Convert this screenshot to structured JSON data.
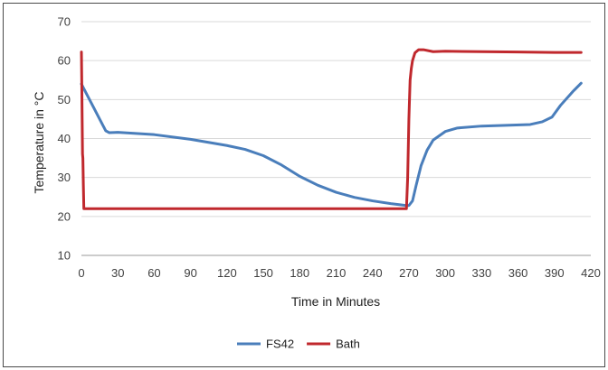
{
  "chart_data": {
    "type": "line",
    "title": "",
    "xlabel": "Time in Minutes",
    "ylabel": "Temperature in °C",
    "xlim": [
      0,
      420
    ],
    "ylim": [
      10,
      70
    ],
    "xticks": [
      0,
      30,
      60,
      90,
      120,
      150,
      180,
      210,
      240,
      270,
      300,
      330,
      360,
      390,
      420
    ],
    "yticks": [
      10,
      20,
      30,
      40,
      50,
      60,
      70
    ],
    "grid": "horizontal",
    "legend_position": "bottom",
    "series": [
      {
        "name": "FS42",
        "color": "#4a7ebb",
        "points": [
          [
            0,
            54
          ],
          [
            5,
            51
          ],
          [
            10,
            48
          ],
          [
            15,
            45
          ],
          [
            20,
            42
          ],
          [
            23,
            41.5
          ],
          [
            30,
            41.6
          ],
          [
            45,
            41.3
          ],
          [
            60,
            41
          ],
          [
            90,
            39.8
          ],
          [
            120,
            38.2
          ],
          [
            135,
            37.2
          ],
          [
            150,
            35.6
          ],
          [
            165,
            33.2
          ],
          [
            180,
            30.3
          ],
          [
            195,
            28
          ],
          [
            210,
            26.2
          ],
          [
            225,
            24.9
          ],
          [
            240,
            24
          ],
          [
            255,
            23.3
          ],
          [
            268,
            22.8
          ],
          [
            270,
            22.8
          ],
          [
            273,
            24
          ],
          [
            276,
            28
          ],
          [
            280,
            33
          ],
          [
            285,
            37
          ],
          [
            290,
            39.6
          ],
          [
            300,
            41.8
          ],
          [
            310,
            42.7
          ],
          [
            330,
            43.2
          ],
          [
            350,
            43.4
          ],
          [
            370,
            43.6
          ],
          [
            380,
            44.3
          ],
          [
            388,
            45.5
          ],
          [
            395,
            48.5
          ],
          [
            405,
            52
          ],
          [
            412,
            54.2
          ]
        ]
      },
      {
        "name": "Bath",
        "color": "#c0282d",
        "points": [
          [
            0,
            62.2
          ],
          [
            0.3,
            54
          ],
          [
            0.6,
            45
          ],
          [
            0.9,
            36
          ],
          [
            1.2,
            35
          ],
          [
            1.6,
            28
          ],
          [
            2,
            22
          ],
          [
            10,
            22
          ],
          [
            100,
            22
          ],
          [
            200,
            22
          ],
          [
            268,
            22
          ],
          [
            269,
            30
          ],
          [
            270,
            45
          ],
          [
            271,
            55
          ],
          [
            272,
            58
          ],
          [
            273,
            60
          ],
          [
            275,
            62
          ],
          [
            278,
            62.8
          ],
          [
            282,
            62.8
          ],
          [
            290,
            62.3
          ],
          [
            300,
            62.4
          ],
          [
            330,
            62.3
          ],
          [
            360,
            62.2
          ],
          [
            390,
            62.1
          ],
          [
            412,
            62.1
          ]
        ]
      }
    ]
  }
}
